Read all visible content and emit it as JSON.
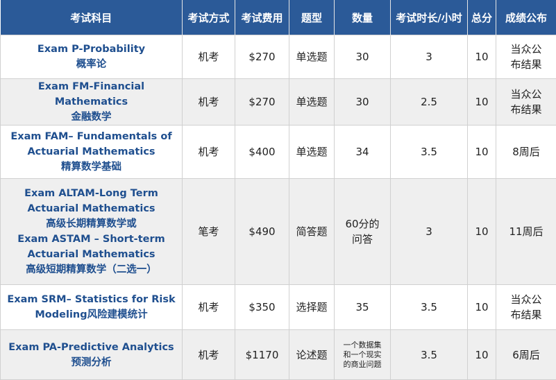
{
  "table": {
    "header": [
      "考试科目",
      "考试方式",
      "考试费用",
      "题型",
      "数量",
      "考试时长/小时",
      "总分",
      "成绩公布"
    ],
    "rows": [
      [
        [
          "Exam P-Probability",
          "概率论"
        ],
        "机考",
        "$270",
        "单选题",
        30,
        3,
        10,
        "当众公布结果"
      ],
      [
        [
          "Exam FM-Financial Mathematics",
          "金融数学"
        ],
        "机考",
        "$270",
        "单选题",
        30,
        2.5,
        10,
        "当众公布结果"
      ],
      [
        [
          "Exam FAM– Fundamentals of",
          "Actuarial Mathematics",
          "精算数学基础"
        ],
        "机考",
        "$400",
        "单选题",
        34,
        3.5,
        10,
        "8周后"
      ],
      [
        [
          "Exam ALTAM-Long Term",
          "Actuarial Mathematics",
          "高级长期精算数学或",
          "Exam ASTAM – Short-term",
          "Actuarial Mathematics",
          "高级短期精算数学（二选一）"
        ],
        "笔考",
        "$490",
        "简答题",
        "60分的问答",
        3,
        10,
        "11周后"
      ],
      [
        [
          "Exam SRM– Statistics for Risk",
          "Modeling风险建模统计"
        ],
        "机考",
        "$350",
        "选择题",
        35,
        3.5,
        10,
        "当众公布结果"
      ],
      [
        [
          "Exam PA-Predictive Analytics",
          "预测分析"
        ],
        "机考",
        "$1170",
        "论述题",
        "一个数据集和一个现实的商业问题",
        3.5,
        10,
        "6周后"
      ]
    ]
  }
}
